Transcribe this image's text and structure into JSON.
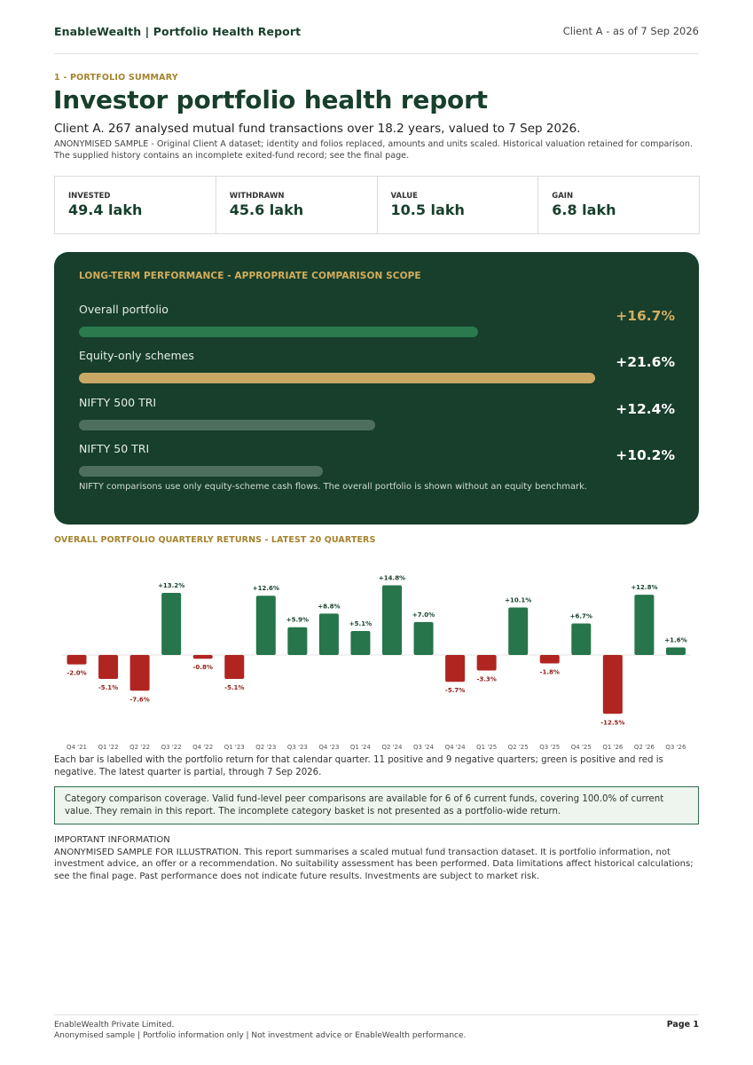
{
  "header": {
    "brand": "EnableWealth | Portfolio Health Report",
    "as_of": "Client A - as of 7 Sep 2026"
  },
  "summary": {
    "section_label": "1 - PORTFOLIO SUMMARY",
    "title": "Investor portfolio health report",
    "subtitle": "Client A. 267 analysed mutual fund transactions over 18.2 years, valued to 7 Sep 2026.",
    "notice": "ANONYMISED SAMPLE - Original Client A dataset; identity and folios replaced, amounts and units scaled. Historical valuation retained for comparison. The supplied history contains an incomplete exited-fund record; see the final page."
  },
  "kpis": [
    {
      "label": "INVESTED",
      "value": "49.4 lakh"
    },
    {
      "label": "WITHDRAWN",
      "value": "45.6 lakh"
    },
    {
      "label": "VALUE",
      "value": "10.5 lakh"
    },
    {
      "label": "GAIN",
      "value": "6.8 lakh"
    }
  ],
  "performance": {
    "title": "LONG-TERM PERFORMANCE - APPROPRIATE COMPARISON SCOPE",
    "scale_max": 21.6,
    "rows": [
      {
        "name": "Overall portfolio",
        "value_label": "+16.7%",
        "value": 16.7,
        "bar_color": "#2a7a4e",
        "label_color": "#d3ad5d"
      },
      {
        "name": "Equity-only schemes",
        "value_label": "+21.6%",
        "value": 21.6,
        "bar_color": "#c9a866",
        "label_color": "#ffffff"
      },
      {
        "name": "NIFTY 500 TRI",
        "value_label": "+12.4%",
        "value": 12.4,
        "bar_color": "#4e6f5f",
        "label_color": "#ffffff"
      },
      {
        "name": "NIFTY 50 TRI",
        "value_label": "+10.2%",
        "value": 10.2,
        "bar_color": "#4e6f5f",
        "label_color": "#ffffff"
      }
    ],
    "note": "NIFTY comparisons use only equity-scheme cash flows. The overall portfolio is shown without an equity benchmark."
  },
  "chart_title": "OVERALL PORTFOLIO QUARTERLY RETURNS - LATEST 20 QUARTERS",
  "chart_data": {
    "type": "bar",
    "categories": [
      "Q4 '21",
      "Q1 '22",
      "Q2 '22",
      "Q3 '22",
      "Q4 '22",
      "Q1 '23",
      "Q2 '23",
      "Q3 '23",
      "Q4 '23",
      "Q1 '24",
      "Q2 '24",
      "Q3 '24",
      "Q4 '24",
      "Q1 '25",
      "Q2 '25",
      "Q3 '25",
      "Q4 '25",
      "Q1 '26",
      "Q2 '26",
      "Q3 '26"
    ],
    "values": [
      -2.0,
      -5.1,
      -7.6,
      13.2,
      -0.8,
      -5.1,
      12.6,
      5.9,
      8.8,
      5.1,
      14.8,
      7.0,
      -5.7,
      -3.3,
      10.1,
      -1.8,
      6.7,
      -12.5,
      12.8,
      1.6
    ],
    "labels": [
      "-2.0%",
      "-5.1%",
      "-7.6%",
      "+13.2%",
      "-0.8%",
      "-5.1%",
      "+12.6%",
      "+5.9%",
      "+8.8%",
      "+5.1%",
      "+14.8%",
      "+7.0%",
      "-5.7%",
      "-3.3%",
      "+10.1%",
      "-1.8%",
      "+6.7%",
      "-12.5%",
      "+12.8%",
      "+1.6%"
    ],
    "positive_color": "#26754b",
    "negative_color": "#b02520",
    "title": "OVERALL PORTFOLIO QUARTERLY RETURNS - LATEST 20 QUARTERS",
    "xlabel": "",
    "ylabel": "",
    "ylim": [
      -12.5,
      14.8
    ],
    "grid": false,
    "legend": "none"
  },
  "chart_note": "Each bar is labelled with the portfolio return for that calendar quarter. 11 positive and 9 negative quarters; green is positive and red is negative. The latest quarter is partial, through 7 Sep 2026.",
  "coverage_text": "Category comparison coverage. Valid fund-level peer comparisons are available for 6 of 6 current funds, covering 100.0% of current value. They remain in this report. The incomplete category basket is not presented as a portfolio-wide return.",
  "important": {
    "title": "IMPORTANT INFORMATION",
    "text": "ANONYMISED SAMPLE FOR ILLUSTRATION. This report summarises a scaled mutual fund transaction dataset. It is portfolio information, not investment advice, an offer or a recommendation. No suitability assessment has been performed. Data limitations affect historical calculations; see the final page. Past performance does not indicate future results. Investments are subject to market risk."
  },
  "footer": {
    "line1": "EnableWealth Private Limited.",
    "line2": "Anonymised sample | Portfolio information only | Not investment advice or EnableWealth performance.",
    "page": "Page 1"
  }
}
